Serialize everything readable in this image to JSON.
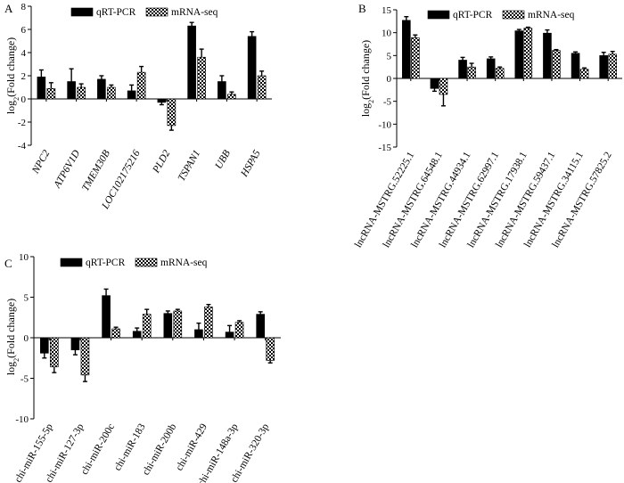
{
  "colors": {
    "axis": "#000000",
    "bar_qrt": "#000000",
    "bar_rna": "#ffffff",
    "error": "#000000"
  },
  "chart_data": [
    {
      "panel": "A",
      "type": "bar",
      "ylabel": "log2(Fold change)",
      "ylabel_main": "log",
      "ylabel_sub": "2",
      "ylabel_rest": "(Fold change)",
      "ylim": [
        -4,
        8
      ],
      "yticks": [
        -4,
        -2,
        0,
        2,
        4,
        6,
        8
      ],
      "legend": [
        "qRT-PCR",
        "mRNA-seq"
      ],
      "legend_position": "top-left",
      "category_style": "italic",
      "categories": [
        "NPC2",
        "ATP6V1D",
        "TMEM30B",
        "LOC102175216",
        "PLD2",
        "TSPAN1",
        "UBB",
        "HSPA5"
      ],
      "series": [
        {
          "name": "qRT-PCR",
          "pattern": "solid",
          "values": [
            1.9,
            1.5,
            1.7,
            0.7,
            -0.3,
            6.3,
            1.5,
            5.4
          ],
          "errors": [
            0.6,
            1.1,
            0.3,
            0.5,
            0.2,
            0.3,
            0.5,
            0.4
          ]
        },
        {
          "name": "mRNA-seq",
          "pattern": "checker",
          "values": [
            0.9,
            1.0,
            1.0,
            2.3,
            -2.3,
            3.6,
            0.4,
            2.0
          ],
          "errors": [
            0.5,
            0.3,
            0.2,
            0.5,
            0.4,
            0.7,
            0.2,
            0.4
          ]
        }
      ]
    },
    {
      "panel": "B",
      "type": "bar",
      "ylabel": "log2(Fold change)",
      "ylabel_main": "log",
      "ylabel_sub": "2",
      "ylabel_rest": "(Fold change)",
      "ylim": [
        -15,
        15
      ],
      "yticks": [
        -15,
        -10,
        -5,
        0,
        5,
        10,
        15
      ],
      "legend": [
        "qRT-PCR",
        "mRNA-seq"
      ],
      "legend_position": "top-right",
      "category_style": "normal",
      "categories": [
        "lncRNA-MSTRG.52225.1",
        "lncRNA-MSTRG.64548.1",
        "lncRNA-MSTRG.44934.1",
        "lncRNA-MSTRG.62997.1",
        "lncRNA-MSTRG.17938.1",
        "lncRNA-MSTRG.59437.1",
        "lncRNA-MSTRG.34115.1",
        "lncRNA-MSTRG.57825.2"
      ],
      "series": [
        {
          "name": "qRT-PCR",
          "pattern": "solid",
          "values": [
            12.7,
            -2.2,
            4.0,
            4.3,
            10.4,
            9.9,
            5.5,
            5.0
          ],
          "errors": [
            0.8,
            0.6,
            0.6,
            0.4,
            0.3,
            0.7,
            0.3,
            0.7
          ]
        },
        {
          "name": "mRNA-seq",
          "pattern": "checker",
          "values": [
            8.9,
            -3.5,
            2.5,
            2.2,
            11.0,
            6.1,
            2.0,
            5.3
          ],
          "errors": [
            0.6,
            2.5,
            0.8,
            0.3,
            0.2,
            0.2,
            0.3,
            0.6
          ]
        }
      ]
    },
    {
      "panel": "C",
      "type": "bar",
      "ylabel": "log2(Fold change)",
      "ylabel_main": "log",
      "ylabel_sub": "2",
      "ylabel_rest": "(Fold change)",
      "ylim": [
        -10,
        10
      ],
      "yticks": [
        -10,
        -5,
        0,
        5,
        10
      ],
      "legend": [
        "qRT-PCR",
        "mRNA-seq"
      ],
      "legend_position": "top-center",
      "category_style": "normal",
      "categories": [
        "chi-miR-155-5p",
        "chi-miR-127-3p",
        "chi-miR-200c",
        "chi-miR-183",
        "chi-miR-200b",
        "chi-miR-429",
        "chi-miR-148a-3p",
        "chi-miR-320-3p"
      ],
      "series": [
        {
          "name": "qRT-PCR",
          "pattern": "solid",
          "values": [
            -1.9,
            -1.5,
            5.2,
            0.8,
            3.0,
            1.0,
            0.7,
            2.9
          ],
          "errors": [
            0.6,
            0.6,
            0.8,
            0.4,
            0.3,
            0.8,
            0.8,
            0.3
          ]
        },
        {
          "name": "mRNA-seq",
          "pattern": "checker",
          "values": [
            -3.6,
            -4.6,
            1.1,
            2.9,
            3.3,
            3.8,
            1.9,
            -2.8
          ],
          "errors": [
            0.7,
            0.8,
            0.2,
            0.6,
            0.2,
            0.3,
            0.2,
            0.3
          ]
        }
      ]
    }
  ]
}
